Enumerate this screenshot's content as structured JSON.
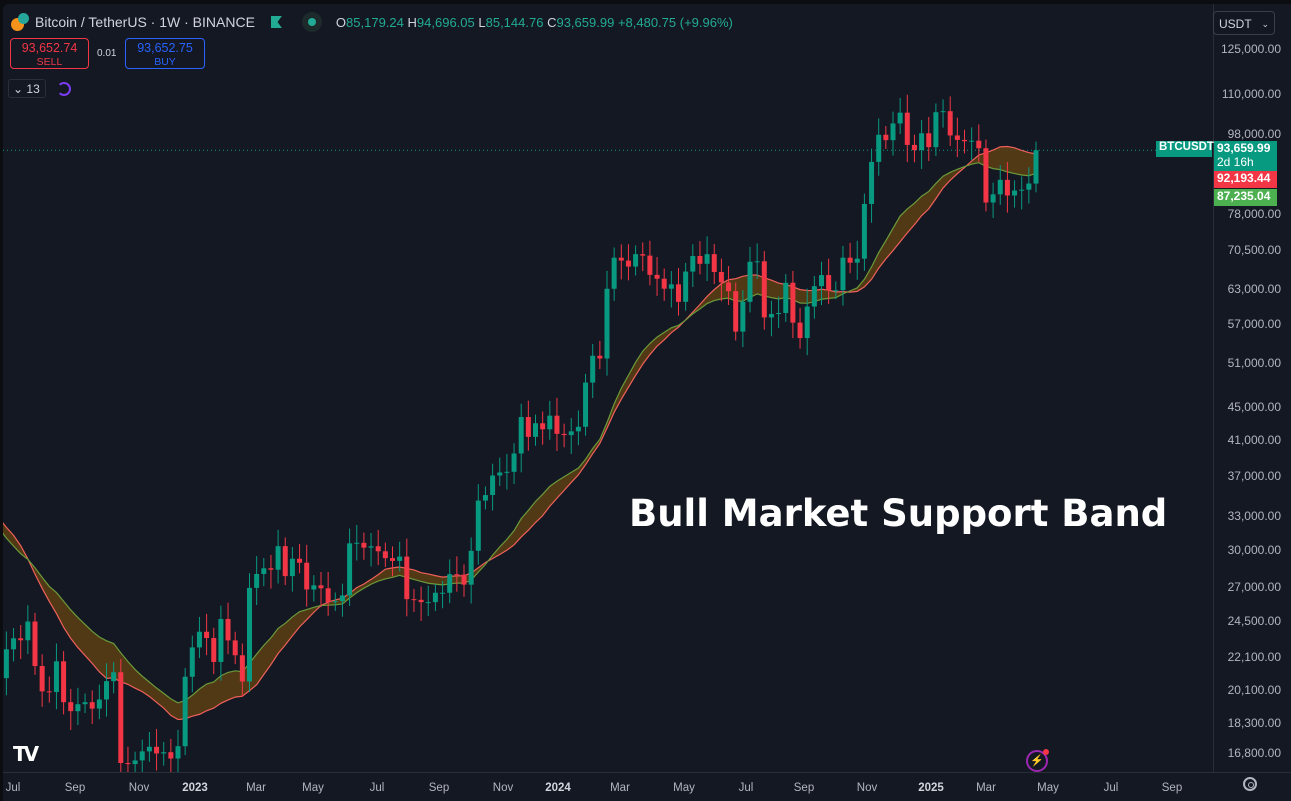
{
  "header": {
    "symbol_title": "Bitcoin / TetherUS · 1W · BINANCE",
    "ohlc": {
      "o_label": "O",
      "o": "85,179.24",
      "h_label": "H",
      "h": "94,696.05",
      "l_label": "L",
      "l": "85,144.76",
      "c_label": "C",
      "c": "93,659.99",
      "change": "+8,480.75 (+9.96%)"
    },
    "sell": {
      "price": "93,652.74",
      "label": "SELL"
    },
    "buy": {
      "price": "93,652.75",
      "label": "BUY"
    },
    "spread": "0.01",
    "indicator_count": "13"
  },
  "price_axis": {
    "currency": "USDT",
    "ticks": [
      {
        "label": "125,000.00",
        "value": 125000
      },
      {
        "label": "110,000.00",
        "value": 110000
      },
      {
        "label": "98,000.00",
        "value": 98000
      },
      {
        "label": "78,000.00",
        "value": 78000
      },
      {
        "label": "70,500.00",
        "value": 70500
      },
      {
        "label": "63,000.00",
        "value": 63000
      },
      {
        "label": "57,000.00",
        "value": 57000
      },
      {
        "label": "51,000.00",
        "value": 51000
      },
      {
        "label": "45,000.00",
        "value": 45000
      },
      {
        "label": "41,000.00",
        "value": 41000
      },
      {
        "label": "37,000.00",
        "value": 37000
      },
      {
        "label": "33,000.00",
        "value": 33000
      },
      {
        "label": "30,000.00",
        "value": 30000
      },
      {
        "label": "27,000.00",
        "value": 27000
      },
      {
        "label": "24,500.00",
        "value": 24500
      },
      {
        "label": "22,100.00",
        "value": 22100
      },
      {
        "label": "20,100.00",
        "value": 20100
      },
      {
        "label": "18,300.00",
        "value": 18300
      },
      {
        "label": "16,800.00",
        "value": 16800
      }
    ],
    "scale": "log",
    "last_price_tag": {
      "symbol": "BTCUSDT",
      "price": "93,659.99",
      "countdown": "2d 16h",
      "value": 93659.99
    },
    "sma_tag": {
      "price": "92,193.44",
      "value": 92193.44
    },
    "ema_tag": {
      "price": "87,235.04",
      "value": 87235.04
    }
  },
  "time_axis": {
    "labels": [
      "Jul",
      "Sep",
      "Nov",
      "2023",
      "Mar",
      "May",
      "Jul",
      "Sep",
      "Nov",
      "2024",
      "Mar",
      "May",
      "Jul",
      "Sep",
      "Nov",
      "2025",
      "Mar",
      "May",
      "Jul",
      "Sep"
    ]
  },
  "annotation": "Bull Market Support Band",
  "colors": {
    "background": "#141823",
    "up": "#089981",
    "down": "#f23645",
    "sma": "#f0605a",
    "ema": "#6a9a3a",
    "band_fill": "#5c3f14",
    "last_price": "#089981"
  },
  "chart_data": {
    "type": "candlestick",
    "interval": "1W",
    "first_week": "2022-06-27",
    "closes": [
      19300,
      20850,
      20800,
      22580,
      23300,
      23170,
      24440,
      21530,
      20030,
      19990,
      21820,
      19420,
      18930,
      19310,
      19420,
      19070,
      19570,
      20620,
      21150,
      16330,
      16280,
      16450,
      16880,
      17100,
      16780,
      16840,
      16540,
      17130,
      20880,
      22700,
      23740,
      23320,
      21780,
      24620,
      23160,
      22200,
      20600,
      26900,
      27990,
      28450,
      28330,
      30300,
      27820,
      29230,
      28900,
      26780,
      27100,
      26870,
      25840,
      25900,
      26330,
      30540,
      30590,
      30170,
      30290,
      29860,
      29280,
      29050,
      29410,
      26050,
      26000,
      25830,
      25830,
      26530,
      26530,
      27970,
      27940,
      27150,
      29900,
      34500,
      35050,
      37060,
      37380,
      37450,
      39460,
      43780,
      41370,
      43010,
      42280,
      43950,
      41730,
      41580,
      42030,
      42580,
      48300,
      52140,
      51730,
      63110,
      68950,
      68390,
      67230,
      69650,
      69360,
      65660,
      64940,
      63120,
      63900,
      60800,
      66280,
      69290,
      67760,
      69650,
      66200,
      64260,
      62680,
      55850,
      60800,
      68160,
      68250,
      58160,
      58720,
      58900,
      64200,
      57300,
      54840,
      59990,
      63580,
      65620,
      62830,
      62850,
      68950,
      67980,
      68760,
      80370,
      90600,
      97900,
      96400,
      101100,
      104250,
      95100,
      93700,
      98300,
      94500,
      104400,
      104700,
      97700,
      96460,
      96100,
      96250,
      94200,
      80700,
      82600,
      86080,
      82330,
      83500,
      83700,
      85180,
      93660
    ],
    "band": {
      "sma_period": 20,
      "ema_period": 21
    }
  }
}
